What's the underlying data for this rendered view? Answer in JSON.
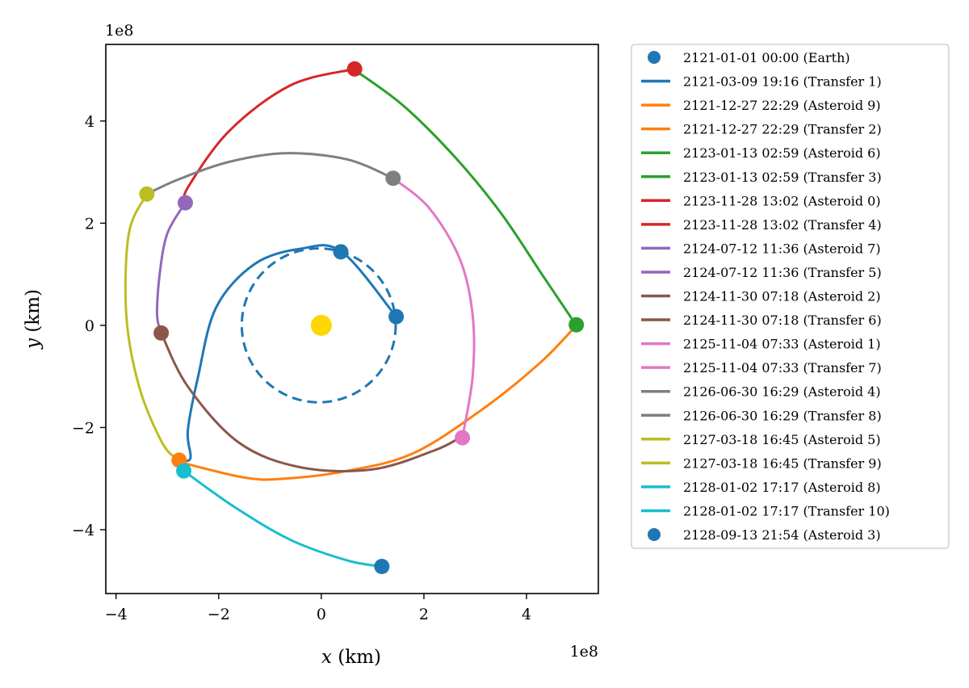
{
  "chart_data": {
    "type": "line",
    "xlabel_var": "x",
    "xlabel_unit": " (km)",
    "ylabel_var": "y",
    "ylabel_unit": " (km)",
    "x_offset_label": "1e8",
    "y_offset_label": "1e8",
    "xlim": [
      -4.2,
      5.4
    ],
    "ylim": [
      -5.25,
      5.5
    ],
    "x_ticks": [
      -4,
      -2,
      0,
      2,
      4
    ],
    "y_ticks": [
      -4,
      -2,
      0,
      2,
      4
    ],
    "x_tick_labels": [
      "−4",
      "−2",
      "0",
      "2",
      "4"
    ],
    "y_tick_labels": [
      "−4",
      "−2",
      "0",
      "2",
      "4"
    ],
    "grid": false,
    "legend_position": "outside-right",
    "colors": {
      "blue": "#1f77b4",
      "orange": "#ff7f0e",
      "green": "#2ca02c",
      "red": "#d62728",
      "purple": "#9467bd",
      "brown": "#8c564b",
      "pink": "#e377c2",
      "gray": "#7f7f7f",
      "olive": "#bcbd22",
      "cyan": "#17becf",
      "sun": "#ffd700"
    },
    "sun": {
      "x": 0.0,
      "y": 0.0,
      "color": "#ffd700"
    },
    "earth_orbit": {
      "center": [
        -0.05,
        0.0
      ],
      "radius": 1.5,
      "color": "#1f77b4"
    },
    "transfers": [
      {
        "name": "Transfer 1",
        "color": "#1f77b4",
        "points": [
          [
            1.46,
            0.17
          ],
          [
            0.4,
            1.44
          ],
          [
            -0.4,
            1.5
          ],
          [
            -1.3,
            1.2
          ],
          [
            -2.05,
            0.35
          ],
          [
            -2.4,
            -1.0
          ],
          [
            -2.6,
            -2.05
          ],
          [
            -2.55,
            -2.6
          ],
          [
            -2.77,
            -2.64
          ]
        ]
      },
      {
        "name": "Transfer 2",
        "color": "#ff7f0e",
        "points": [
          [
            -2.9,
            -2.64
          ],
          [
            -1.5,
            -2.98
          ],
          [
            -0.7,
            -3.0
          ],
          [
            0.5,
            -2.85
          ],
          [
            1.8,
            -2.5
          ],
          [
            3.2,
            -1.6
          ],
          [
            4.3,
            -0.7
          ],
          [
            4.97,
            0.0
          ]
        ]
      },
      {
        "name": "Transfer 3",
        "color": "#2ca02c",
        "points": [
          [
            4.97,
            0.0
          ],
          [
            4.3,
            1.0
          ],
          [
            3.5,
            2.2
          ],
          [
            2.6,
            3.3
          ],
          [
            1.6,
            4.3
          ],
          [
            0.65,
            5.0
          ]
        ]
      },
      {
        "name": "Transfer 4",
        "color": "#d62728",
        "points": [
          [
            0.65,
            5.02
          ],
          [
            -0.6,
            4.7
          ],
          [
            -1.8,
            3.8
          ],
          [
            -2.6,
            2.7
          ],
          [
            -2.65,
            2.4
          ]
        ]
      },
      {
        "name": "Transfer 5",
        "color": "#9467bd",
        "points": [
          [
            -2.65,
            2.4
          ],
          [
            -3.0,
            1.8
          ],
          [
            -3.15,
            1.0
          ],
          [
            -3.2,
            0.2
          ],
          [
            -3.12,
            -0.15
          ]
        ]
      },
      {
        "name": "Transfer 6",
        "color": "#8c564b",
        "points": [
          [
            -3.12,
            -0.15
          ],
          [
            -2.6,
            -1.2
          ],
          [
            -1.6,
            -2.3
          ],
          [
            -0.4,
            -2.78
          ],
          [
            1.0,
            -2.82
          ],
          [
            2.2,
            -2.45
          ],
          [
            2.7,
            -2.2
          ]
        ]
      },
      {
        "name": "Transfer 7",
        "color": "#e377c2",
        "points": [
          [
            2.75,
            -2.2
          ],
          [
            2.95,
            -1.0
          ],
          [
            2.95,
            0.2
          ],
          [
            2.7,
            1.3
          ],
          [
            2.1,
            2.3
          ],
          [
            1.4,
            2.88
          ]
        ]
      },
      {
        "name": "Transfer 8",
        "color": "#7f7f7f",
        "points": [
          [
            1.4,
            2.88
          ],
          [
            0.5,
            3.25
          ],
          [
            -0.7,
            3.37
          ],
          [
            -1.8,
            3.2
          ],
          [
            -2.8,
            2.85
          ],
          [
            -3.4,
            2.57
          ]
        ]
      },
      {
        "name": "Transfer 9",
        "color": "#bcbd22",
        "points": [
          [
            -3.4,
            2.57
          ],
          [
            -3.75,
            1.8
          ],
          [
            -3.8,
            0.2
          ],
          [
            -3.55,
            -1.2
          ],
          [
            -3.1,
            -2.3
          ],
          [
            -2.78,
            -2.64
          ]
        ]
      },
      {
        "name": "Transfer 10",
        "color": "#17becf",
        "points": [
          [
            -2.68,
            -2.85
          ],
          [
            -1.7,
            -3.55
          ],
          [
            -0.6,
            -4.2
          ],
          [
            0.5,
            -4.6
          ],
          [
            1.18,
            -4.72
          ]
        ]
      }
    ],
    "bodies": [
      {
        "name": "Earth",
        "x": 1.46,
        "y": 0.17,
        "color": "#1f77b4"
      },
      {
        "name": "Earth (orbit point)",
        "x": 0.38,
        "y": 1.44,
        "color": "#1f77b4"
      },
      {
        "name": "Asteroid 9",
        "x": -2.77,
        "y": -2.64,
        "color": "#ff7f0e"
      },
      {
        "name": "Asteroid 6",
        "x": 4.97,
        "y": 0.01,
        "color": "#2ca02c"
      },
      {
        "name": "Asteroid 0",
        "x": 0.65,
        "y": 5.02,
        "color": "#d62728"
      },
      {
        "name": "Asteroid 7",
        "x": -2.65,
        "y": 2.4,
        "color": "#9467bd"
      },
      {
        "name": "Asteroid 2",
        "x": -3.12,
        "y": -0.15,
        "color": "#8c564b"
      },
      {
        "name": "Asteroid 1",
        "x": 2.75,
        "y": -2.2,
        "color": "#e377c2"
      },
      {
        "name": "Asteroid 4",
        "x": 1.4,
        "y": 2.88,
        "color": "#7f7f7f"
      },
      {
        "name": "Asteroid 5",
        "x": -3.4,
        "y": 2.57,
        "color": "#bcbd22"
      },
      {
        "name": "Asteroid 8",
        "x": -2.68,
        "y": -2.85,
        "color": "#17becf"
      },
      {
        "name": "Asteroid 3",
        "x": 1.18,
        "y": -4.72,
        "color": "#1f77b4"
      }
    ],
    "legend": [
      {
        "label": "2121-01-01 00:00 (Earth)",
        "color": "#1f77b4",
        "marker": "dot"
      },
      {
        "label": "2121-03-09 19:16 (Transfer 1)",
        "color": "#1f77b4",
        "marker": "line"
      },
      {
        "label": "2121-12-27 22:29 (Asteroid 9)",
        "color": "#ff7f0e",
        "marker": "line"
      },
      {
        "label": "2121-12-27 22:29 (Transfer 2)",
        "color": "#ff7f0e",
        "marker": "line"
      },
      {
        "label": "2123-01-13 02:59 (Asteroid 6)",
        "color": "#2ca02c",
        "marker": "line"
      },
      {
        "label": "2123-01-13 02:59 (Transfer 3)",
        "color": "#2ca02c",
        "marker": "line"
      },
      {
        "label": "2123-11-28 13:02 (Asteroid 0)",
        "color": "#d62728",
        "marker": "line"
      },
      {
        "label": "2123-11-28 13:02 (Transfer 4)",
        "color": "#d62728",
        "marker": "line"
      },
      {
        "label": "2124-07-12 11:36 (Asteroid 7)",
        "color": "#9467bd",
        "marker": "line"
      },
      {
        "label": "2124-07-12 11:36 (Transfer 5)",
        "color": "#9467bd",
        "marker": "line"
      },
      {
        "label": "2124-11-30 07:18 (Asteroid 2)",
        "color": "#8c564b",
        "marker": "line"
      },
      {
        "label": "2124-11-30 07:18 (Transfer 6)",
        "color": "#8c564b",
        "marker": "line"
      },
      {
        "label": "2125-11-04 07:33 (Asteroid 1)",
        "color": "#e377c2",
        "marker": "line"
      },
      {
        "label": "2125-11-04 07:33 (Transfer 7)",
        "color": "#e377c2",
        "marker": "line"
      },
      {
        "label": "2126-06-30 16:29 (Asteroid 4)",
        "color": "#7f7f7f",
        "marker": "line"
      },
      {
        "label": "2126-06-30 16:29 (Transfer 8)",
        "color": "#7f7f7f",
        "marker": "line"
      },
      {
        "label": "2127-03-18 16:45 (Asteroid 5)",
        "color": "#bcbd22",
        "marker": "line"
      },
      {
        "label": "2127-03-18 16:45 (Transfer 9)",
        "color": "#bcbd22",
        "marker": "line"
      },
      {
        "label": "2128-01-02 17:17 (Asteroid 8)",
        "color": "#17becf",
        "marker": "line"
      },
      {
        "label": "2128-01-02 17:17 (Transfer 10)",
        "color": "#17becf",
        "marker": "line"
      },
      {
        "label": "2128-09-13 21:54 (Asteroid 3)",
        "color": "#1f77b4",
        "marker": "dot"
      }
    ]
  }
}
